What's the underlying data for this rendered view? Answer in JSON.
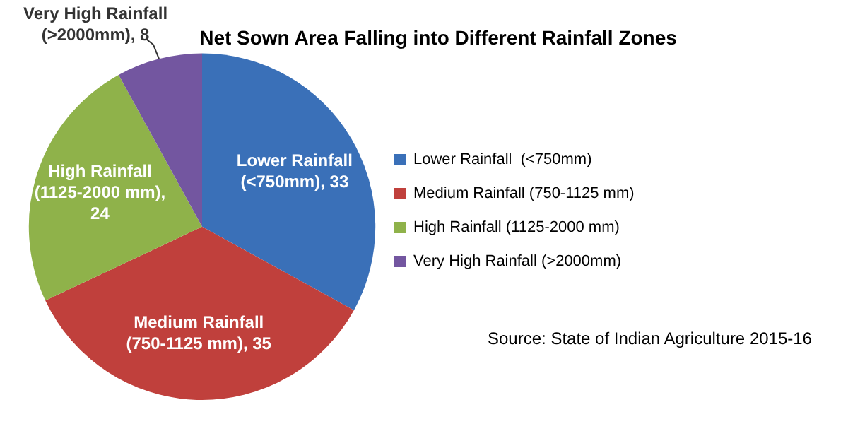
{
  "chart_data": {
    "type": "pie",
    "title": "Net Sown Area Falling into Different Rainfall Zones",
    "categories": [
      "Lower Rainfall  (<750mm)",
      "Medium Rainfall (750-1125 mm)",
      "High Rainfall (1125-2000 mm)",
      "Very High Rainfall (>2000mm)"
    ],
    "values": [
      33,
      35,
      24,
      8
    ],
    "colors": [
      "#3a70b8",
      "#c0403c",
      "#8fb24a",
      "#7356a0"
    ],
    "value_labels": [
      "Lower Rainfall (<750mm), 33",
      "Medium Rainfall (750-1125 mm), 35",
      "High Rainfall (1125-2000 mm), 24",
      "Very High Rainfall (>2000mm), 8"
    ],
    "legend": "right",
    "annotations": [
      "Source: State of Indian Agriculture 2015-16"
    ]
  }
}
